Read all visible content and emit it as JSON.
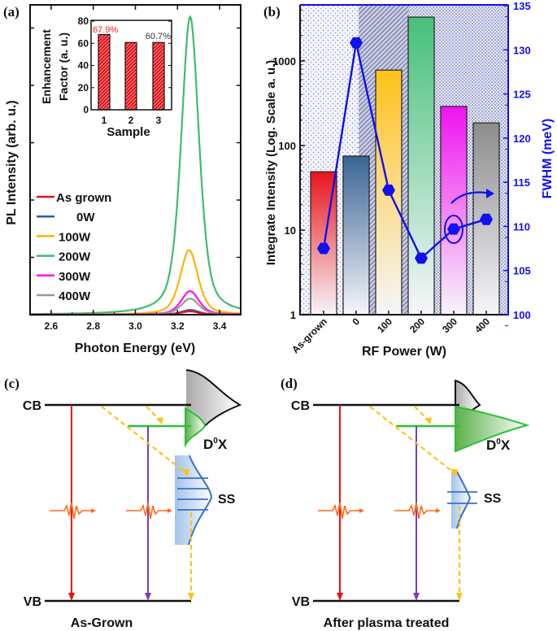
{
  "panels": {
    "a": "(a)",
    "b": "(b)",
    "c": "(c)",
    "d": "(d)"
  },
  "chart_data": [
    {
      "panel": "a",
      "type": "line",
      "xlabel": "Photon Energy (eV)",
      "ylabel": "PL Intensity (arb. u.)",
      "xlim": [
        2.5,
        3.5
      ],
      "xticks": [
        "2.6",
        "2.8",
        "3.0",
        "3.2",
        "3.4"
      ],
      "ylim": [
        0,
        104
      ],
      "yticks_labeled": false,
      "legend_placement": "left",
      "series": [
        {
          "name": "As grown",
          "color": "#e8141c",
          "peak_x": 3.26,
          "peak_y": 1.1,
          "fwhm_eV": 0.1
        },
        {
          "name": "0W",
          "color": "#2f5f9a",
          "peak_x": 3.26,
          "peak_y": 1.6,
          "fwhm_eV": 0.1
        },
        {
          "name": "100W",
          "color": "#ffb300",
          "peak_x": 3.255,
          "peak_y": 21.7,
          "fwhm_eV": 0.1
        },
        {
          "name": "200W",
          "color": "#3dbd6e",
          "peak_x": 3.26,
          "peak_y": 100,
          "fwhm_eV": 0.1
        },
        {
          "name": "300W",
          "color": "#ff10f0",
          "peak_x": 3.26,
          "peak_y": 7.9,
          "fwhm_eV": 0.1
        },
        {
          "name": "400W",
          "color": "#999999",
          "peak_x": 3.26,
          "peak_y": 5.4,
          "fwhm_eV": 0.1
        }
      ]
    },
    {
      "panel": "a-inset",
      "type": "bar",
      "xlabel": "Sample",
      "ylabel": [
        "Enhancement",
        "Factor (a. u.)"
      ],
      "categories": [
        "1",
        "2",
        "3"
      ],
      "values": [
        67.9,
        60.7,
        60.7
      ],
      "ylim": [
        0,
        80
      ],
      "yticks": [
        "0",
        "20",
        "40",
        "60",
        "80"
      ],
      "bar_color": "#e8141c",
      "annotations": [
        {
          "text": "67.9%",
          "category": "1",
          "color": "#ff2020"
        },
        {
          "text": "60.7%",
          "category": "3",
          "color": "#333333"
        }
      ]
    },
    {
      "panel": "b",
      "type": "bar",
      "xlabel": "RF Power (W)",
      "ylabel": "Integrate Intensity (Log. Scale a. u.)",
      "y2label": "FWHM (meV)",
      "categories": [
        "As-grown",
        "0",
        "100",
        "200",
        "300",
        "400"
      ],
      "yscale": "log",
      "ylim": [
        1,
        4600
      ],
      "yticks": [
        "1",
        "10",
        "100",
        "1000"
      ],
      "y2lim": [
        100,
        135
      ],
      "y2ticks": [
        "100",
        "105",
        "110",
        "115",
        "120",
        "125",
        "130",
        "135"
      ],
      "y2_color": "#1010f0",
      "bar_colors": [
        "#e8141c",
        "#3a6494",
        "#ffc21a",
        "#45c079",
        "#f012f0",
        "#8c8c8c"
      ],
      "series": [
        {
          "axis": "left",
          "type": "bar",
          "values": [
            49,
            75,
            780,
            3300,
            290,
            185
          ]
        },
        {
          "axis": "right",
          "type": "line",
          "marker": "hexagon",
          "values": [
            107.5,
            130.8,
            114.1,
            106.4,
            109.7,
            110.8
          ]
        }
      ],
      "annotations": [
        "ellipse around 300 W FWHM point",
        "arrow pointing to right axis"
      ]
    }
  ],
  "diagram_c": {
    "cb": "CB",
    "vb": "VB",
    "d0x": "D",
    "d0x_sup": "0",
    "d0x_tail": "X",
    "ss": "SS",
    "caption": "As-Grown"
  },
  "diagram_d": {
    "cb": "CB",
    "vb": "VB",
    "d0x": "D",
    "d0x_sup": "0",
    "d0x_tail": "X",
    "ss": "SS",
    "caption": "After plasma treated"
  }
}
